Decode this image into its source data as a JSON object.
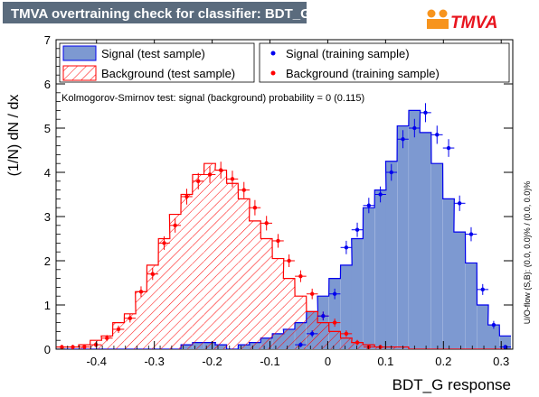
{
  "window": {
    "title": "TMVA overtraining check for classifier: BDT_G",
    "logo_text": "TMVA"
  },
  "colors": {
    "title_bar": "#5a6b7d",
    "signal_fill": "#7d99d1",
    "signal_line": "#0000ee",
    "background_line": "#ff0000",
    "logo_orange": "#f7941d"
  },
  "legend": {
    "signal_test": "Signal (test sample)",
    "background_test": "Background (test sample)",
    "signal_train": "Signal (training sample)",
    "background_train": "Background (training sample)"
  },
  "ks_text": "Kolmogorov-Smirnov test: signal (background) probability =     0 (0.115)",
  "overflow_text": "U/O-flow (S,B): (0.0, 0.0)% / (0.0, 0.0)%",
  "chart_data": {
    "type": "bar",
    "xlabel": "BDT_G response",
    "ylabel": "(1/N) dN / dx",
    "xlim": [
      -0.47,
      0.32
    ],
    "ylim": [
      0,
      7
    ],
    "x_ticks": [
      -0.4,
      -0.3,
      -0.2,
      -0.1,
      0,
      0.1,
      0.2,
      0.3
    ],
    "y_ticks": [
      0,
      1,
      2,
      3,
      4,
      5,
      6,
      7
    ],
    "bin_width": 0.0197,
    "bin_centers": [
      -0.46,
      -0.441,
      -0.421,
      -0.401,
      -0.382,
      -0.362,
      -0.342,
      -0.323,
      -0.303,
      -0.283,
      -0.264,
      -0.244,
      -0.224,
      -0.204,
      -0.185,
      -0.165,
      -0.145,
      -0.126,
      -0.106,
      -0.086,
      -0.067,
      -0.047,
      -0.027,
      -0.008,
      0.012,
      0.032,
      0.051,
      0.071,
      0.091,
      0.11,
      0.13,
      0.15,
      0.169,
      0.189,
      0.209,
      0.228,
      0.248,
      0.268,
      0.287,
      0.307
    ],
    "series": [
      {
        "name": "Signal (test sample)",
        "values": [
          0,
          0,
          0,
          0,
          0,
          0,
          0,
          0,
          0,
          0,
          0,
          0.1,
          0.15,
          0.15,
          0.1,
          0,
          0.1,
          0.15,
          0.25,
          0.35,
          0.45,
          0.6,
          0.85,
          1.2,
          1.6,
          1.9,
          2.5,
          3.2,
          3.6,
          4.25,
          5.05,
          5.4,
          4.9,
          4.2,
          3.4,
          2.65,
          1.95,
          1.0,
          0.55,
          0.3
        ]
      },
      {
        "name": "Background (test sample)",
        "values": [
          0.05,
          0.05,
          0.1,
          0.2,
          0.3,
          0.6,
          0.8,
          1.3,
          1.9,
          2.5,
          3.05,
          3.5,
          3.95,
          4.2,
          4.05,
          3.75,
          3.4,
          2.9,
          2.5,
          2.05,
          1.6,
          1.2,
          0.85,
          0.6,
          0.4,
          0.25,
          0.15,
          0.1,
          0.05,
          0.05,
          0.05,
          0,
          0,
          0,
          0,
          0,
          0,
          0,
          0,
          0
        ]
      },
      {
        "name": "Signal (training sample)",
        "values": [
          null,
          null,
          null,
          null,
          null,
          null,
          null,
          null,
          null,
          null,
          null,
          null,
          null,
          null,
          null,
          null,
          null,
          null,
          null,
          null,
          null,
          0.1,
          0.35,
          0.75,
          1.25,
          2.3,
          2.7,
          3.25,
          3.5,
          4.0,
          4.75,
          5.0,
          5.35,
          4.85,
          4.55,
          3.3,
          2.6,
          1.35,
          0.55,
          0.05
        ]
      },
      {
        "name": "Background (training sample)",
        "values": [
          0.05,
          0.05,
          0.05,
          0.1,
          0.25,
          0.45,
          0.7,
          1.3,
          1.7,
          2.4,
          2.8,
          3.45,
          3.8,
          3.95,
          4.05,
          3.85,
          3.6,
          3.2,
          2.85,
          2.45,
          2.0,
          1.65,
          1.25,
          0.75,
          0.6,
          0.35,
          0.15,
          0.05,
          0.05,
          null,
          null,
          null,
          null,
          null,
          null,
          null,
          null,
          null,
          null,
          null
        ]
      }
    ],
    "legend_position": "top"
  }
}
